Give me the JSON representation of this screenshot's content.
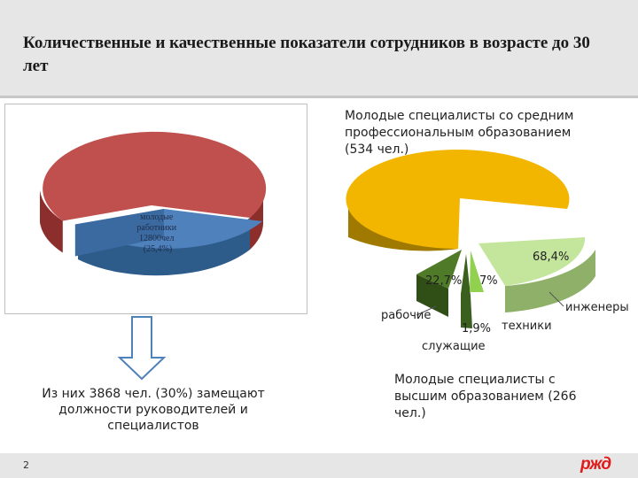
{
  "title": "Количественные и качественные показатели сотрудников в возрасте до 30 лет",
  "left_pie": {
    "label_lines": [
      "молодые",
      "работники",
      "12800чел",
      "(25,4%)"
    ],
    "colors": {
      "main": "#c0504d",
      "main_side": "#8b2e2c",
      "slice": "#4f81bd",
      "slice_side": "#2d5b8a"
    }
  },
  "right_pie": {
    "title": "Молодые специалисты со средним профессиональным образованием (534 чел.)",
    "colors": {
      "main": "#f2b600",
      "main_side": "#a07a00",
      "workers": "#4f7a28",
      "workers_side": "#2f4f16",
      "employees": "#3a5f1e",
      "technicians": "#92d050",
      "engineers": "#c4e59c",
      "engineers_side": "#8fb068"
    },
    "categories": {
      "workers": "рабочие",
      "employees": "служащие",
      "technicians": "техники",
      "engineers": "инженеры"
    }
  },
  "chart_data": [
    {
      "type": "pie",
      "categories": [
        "молодые работники",
        ""
      ],
      "values": [
        25.4,
        74.6
      ],
      "labels": [
        "молодые работники 12800чел (25,4%)"
      ]
    },
    {
      "type": "pie",
      "title": "Молодые специалисты со средним профессиональным образованием (534 чел.)",
      "categories": [
        "рабочие",
        "служащие",
        "техники",
        "инженеры"
      ],
      "values": [
        22.7,
        1.9,
        7,
        68.4
      ],
      "data_labels": [
        "22,7%",
        "1,9%",
        "7%",
        "68,4%"
      ]
    }
  ],
  "callouts": {
    "left_note": "Из них 3868 чел. (30%) замещают должности руководителей и специалистов",
    "right_note": "Молодые специалисты с высшим образованием (266 чел.)"
  },
  "footer": {
    "page_number": "2",
    "logo_text": "ржд"
  }
}
